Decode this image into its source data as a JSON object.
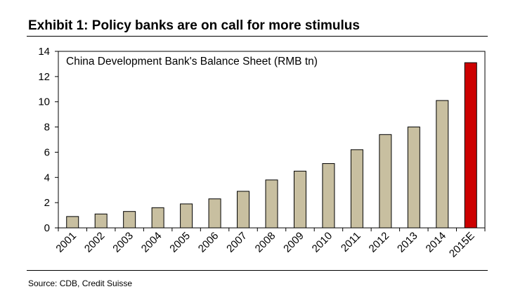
{
  "header": {
    "exhibit_title": "Exhibit 1: Policy banks are on call for more stimulus"
  },
  "footer": {
    "source": "Source: CDB, Credit Suisse"
  },
  "chart_data": {
    "type": "bar",
    "title": "China Development Bank's Balance Sheet  (RMB tn)",
    "categories": [
      "2001",
      "2002",
      "2003",
      "2004",
      "2005",
      "2006",
      "2007",
      "2008",
      "2009",
      "2010",
      "2011",
      "2012",
      "2013",
      "2014",
      "2015E"
    ],
    "values": [
      0.9,
      1.1,
      1.3,
      1.6,
      1.9,
      2.3,
      2.9,
      3.8,
      4.5,
      5.1,
      6.2,
      7.4,
      8.0,
      10.1,
      13.1
    ],
    "highlight_index": 14,
    "colors": {
      "bar": "#c8bfa0",
      "highlight": "#cc0000",
      "stroke": "#000000"
    },
    "ylim": [
      0,
      14
    ],
    "yticks": [
      0,
      2,
      4,
      6,
      8,
      10,
      12,
      14
    ],
    "xlabel": "",
    "ylabel": "",
    "grid": false
  }
}
